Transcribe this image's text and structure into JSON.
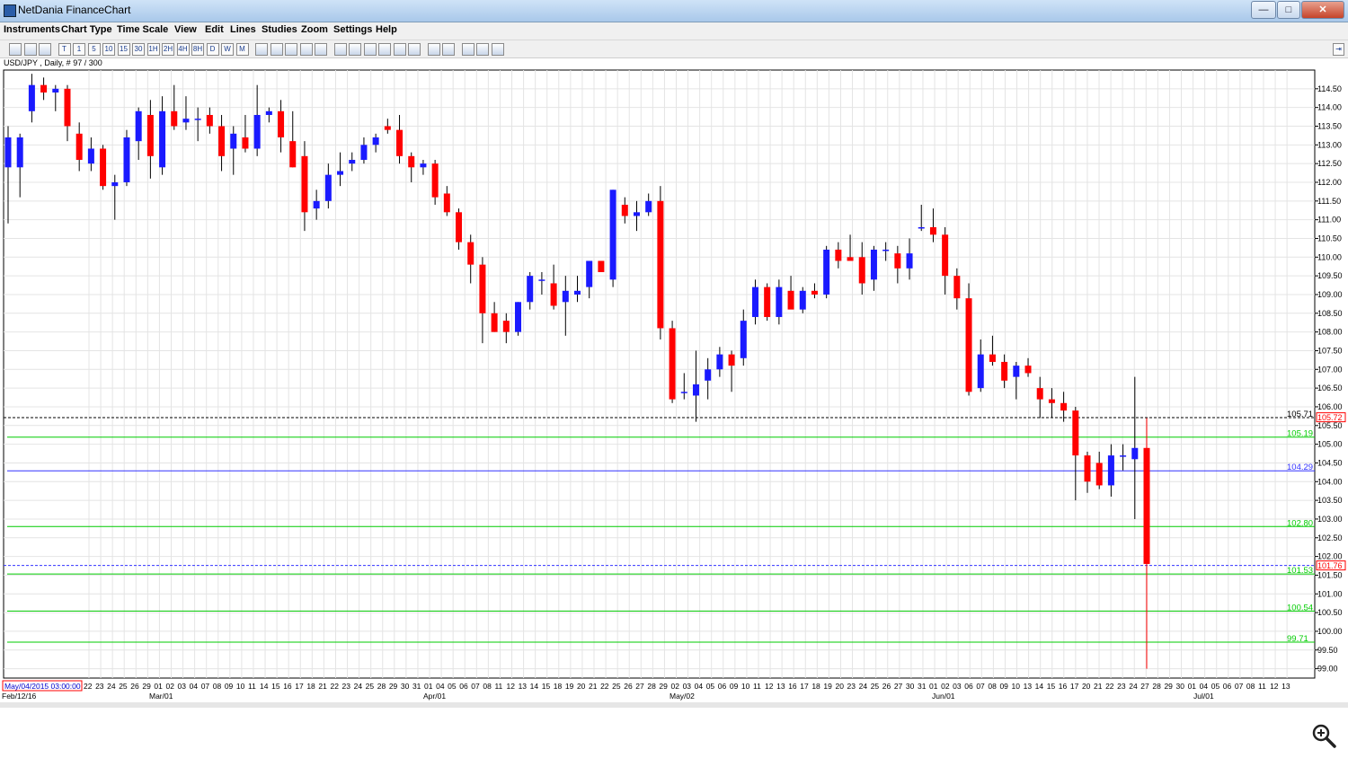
{
  "window": {
    "title": "NetDania FinanceChart",
    "min_label": "—",
    "max_label": "□",
    "close_label": "✕"
  },
  "menu": [
    "Instruments",
    "Chart Type",
    "Time Scale",
    "View",
    "Edit",
    "Lines",
    "Studies",
    "Zoom",
    "Settings",
    "Help"
  ],
  "toolbar": {
    "buttons": [
      "bar-chart-icon",
      "candle-icon",
      "line-icon",
      "T",
      "1",
      "5",
      "10",
      "15",
      "30",
      "1H",
      "2H",
      "4H",
      "8H",
      "D",
      "W",
      "M",
      "crosshair-icon",
      "grid-icon",
      "cursor-icon",
      "indicator-icon",
      "volume-icon",
      "trend-line-icon",
      "channel-icon",
      "fib-icon",
      "arrow-icon",
      "delete-icon",
      "delete-all-icon",
      "print-icon",
      "print-preview-icon",
      "zoom-in-icon",
      "zoom-out-icon",
      "zoom-reset-icon"
    ],
    "right_button": "⇥"
  },
  "chart_caption": "USD/JPY , Daily, # 97 / 300",
  "colors": {
    "up": "#1a1aff",
    "down": "#ff0000",
    "grid": "#e4e4e4",
    "support": "#00cc00",
    "pivot": "#3333ff",
    "price_line": "#000000"
  },
  "chart_data": {
    "type": "candlestick",
    "ylim": [
      98.75,
      115.0
    ],
    "y_ticks": [
      "114.50",
      "114.00",
      "113.50",
      "113.00",
      "112.50",
      "112.00",
      "111.50",
      "111.00",
      "110.50",
      "110.00",
      "109.50",
      "109.00",
      "108.50",
      "108.00",
      "107.50",
      "107.00",
      "106.50",
      "106.00",
      "105.50",
      "105.00",
      "104.50",
      "104.00",
      "103.50",
      "103.00",
      "102.50",
      "102.00",
      "101.50",
      "101.00",
      "100.50",
      "100.00",
      "99.50",
      "99.00"
    ],
    "x_labels": [
      "May/04/2015 03:00:00",
      "22",
      "23",
      "24",
      "25",
      "26",
      "29",
      "01",
      "02",
      "03",
      "04",
      "07",
      "08",
      "09",
      "10",
      "11",
      "14",
      "15",
      "16",
      "17",
      "18",
      "21",
      "22",
      "23",
      "24",
      "25",
      "28",
      "29",
      "30",
      "31",
      "01",
      "04",
      "05",
      "06",
      "07",
      "08",
      "11",
      "12",
      "13",
      "14",
      "15",
      "18",
      "19",
      "20",
      "21",
      "22",
      "25",
      "26",
      "27",
      "28",
      "29",
      "02",
      "03",
      "04",
      "05",
      "06",
      "09",
      "10",
      "11",
      "12",
      "13",
      "16",
      "17",
      "18",
      "19",
      "20",
      "23",
      "24",
      "25",
      "26",
      "27",
      "30",
      "31",
      "01",
      "02",
      "03",
      "06",
      "07",
      "08",
      "09",
      "10",
      "13",
      "14",
      "15",
      "16",
      "17",
      "20",
      "21",
      "22",
      "23",
      "24",
      "27",
      "28",
      "29",
      "30",
      "01",
      "04",
      "05",
      "06",
      "07",
      "08",
      "11",
      "12",
      "13"
    ],
    "month_labels": [
      "Feb/12/16",
      "Mar/01",
      "Apr/01",
      "May/02",
      "Jun/01",
      "Jul/01"
    ],
    "candles": [
      {
        "o": 112.4,
        "h": 113.5,
        "l": 110.9,
        "c": 113.2
      },
      {
        "o": 112.4,
        "h": 113.3,
        "l": 111.6,
        "c": 113.2
      },
      {
        "o": 113.9,
        "h": 114.9,
        "l": 113.6,
        "c": 114.6
      },
      {
        "o": 114.6,
        "h": 114.8,
        "l": 114.2,
        "c": 114.4
      },
      {
        "o": 114.4,
        "h": 114.6,
        "l": 113.9,
        "c": 114.5
      },
      {
        "o": 114.5,
        "h": 114.6,
        "l": 113.1,
        "c": 113.5
      },
      {
        "o": 113.3,
        "h": 113.6,
        "l": 112.3,
        "c": 112.6
      },
      {
        "o": 112.5,
        "h": 113.2,
        "l": 112.3,
        "c": 112.9
      },
      {
        "o": 112.9,
        "h": 113.0,
        "l": 111.8,
        "c": 111.9
      },
      {
        "o": 111.9,
        "h": 112.2,
        "l": 111.0,
        "c": 112.0
      },
      {
        "o": 112.0,
        "h": 113.4,
        "l": 111.9,
        "c": 113.2
      },
      {
        "o": 113.1,
        "h": 114.0,
        "l": 112.6,
        "c": 113.9
      },
      {
        "o": 113.8,
        "h": 114.2,
        "l": 112.1,
        "c": 112.7
      },
      {
        "o": 112.4,
        "h": 114.3,
        "l": 112.2,
        "c": 113.9
      },
      {
        "o": 113.9,
        "h": 114.6,
        "l": 113.4,
        "c": 113.5
      },
      {
        "o": 113.6,
        "h": 114.3,
        "l": 113.4,
        "c": 113.7
      },
      {
        "o": 113.7,
        "h": 114.0,
        "l": 113.1,
        "c": 113.7
      },
      {
        "o": 113.8,
        "h": 114.0,
        "l": 113.3,
        "c": 113.5
      },
      {
        "o": 113.5,
        "h": 113.8,
        "l": 112.3,
        "c": 112.7
      },
      {
        "o": 112.9,
        "h": 113.5,
        "l": 112.2,
        "c": 113.3
      },
      {
        "o": 113.2,
        "h": 113.8,
        "l": 112.8,
        "c": 112.9
      },
      {
        "o": 112.9,
        "h": 114.6,
        "l": 112.7,
        "c": 113.8
      },
      {
        "o": 113.8,
        "h": 114.0,
        "l": 113.6,
        "c": 113.9
      },
      {
        "o": 113.9,
        "h": 114.2,
        "l": 112.8,
        "c": 113.2
      },
      {
        "o": 113.1,
        "h": 113.9,
        "l": 112.4,
        "c": 112.4
      },
      {
        "o": 112.7,
        "h": 113.1,
        "l": 110.7,
        "c": 111.2
      },
      {
        "o": 111.3,
        "h": 111.8,
        "l": 111.0,
        "c": 111.5
      },
      {
        "o": 111.5,
        "h": 112.5,
        "l": 111.3,
        "c": 112.2
      },
      {
        "o": 112.2,
        "h": 112.8,
        "l": 111.9,
        "c": 112.3
      },
      {
        "o": 112.5,
        "h": 112.8,
        "l": 112.3,
        "c": 112.6
      },
      {
        "o": 112.6,
        "h": 113.2,
        "l": 112.5,
        "c": 113.0
      },
      {
        "o": 113.0,
        "h": 113.3,
        "l": 112.8,
        "c": 113.2
      },
      {
        "o": 113.5,
        "h": 113.7,
        "l": 113.3,
        "c": 113.4
      },
      {
        "o": 113.4,
        "h": 113.8,
        "l": 112.5,
        "c": 112.7
      },
      {
        "o": 112.7,
        "h": 112.8,
        "l": 112.0,
        "c": 112.4
      },
      {
        "o": 112.4,
        "h": 112.6,
        "l": 112.2,
        "c": 112.5
      },
      {
        "o": 112.5,
        "h": 112.6,
        "l": 111.4,
        "c": 111.6
      },
      {
        "o": 111.7,
        "h": 111.9,
        "l": 111.1,
        "c": 111.2
      },
      {
        "o": 111.2,
        "h": 111.3,
        "l": 110.2,
        "c": 110.4
      },
      {
        "o": 110.4,
        "h": 110.6,
        "l": 109.3,
        "c": 109.8
      },
      {
        "o": 109.8,
        "h": 110.0,
        "l": 107.7,
        "c": 108.5
      },
      {
        "o": 108.5,
        "h": 108.8,
        "l": 108.0,
        "c": 108.0
      },
      {
        "o": 108.3,
        "h": 108.5,
        "l": 107.7,
        "c": 108.0
      },
      {
        "o": 108.0,
        "h": 108.8,
        "l": 107.9,
        "c": 108.8
      },
      {
        "o": 108.8,
        "h": 109.6,
        "l": 108.6,
        "c": 109.5
      },
      {
        "o": 109.4,
        "h": 109.6,
        "l": 109.0,
        "c": 109.4
      },
      {
        "o": 109.3,
        "h": 109.8,
        "l": 108.6,
        "c": 108.7
      },
      {
        "o": 108.8,
        "h": 109.5,
        "l": 107.9,
        "c": 109.1
      },
      {
        "o": 109.0,
        "h": 109.5,
        "l": 108.8,
        "c": 109.1
      },
      {
        "o": 109.2,
        "h": 109.8,
        "l": 108.9,
        "c": 109.9
      },
      {
        "o": 109.9,
        "h": 109.9,
        "l": 109.6,
        "c": 109.6
      },
      {
        "o": 109.4,
        "h": 111.8,
        "l": 109.2,
        "c": 111.8
      },
      {
        "o": 111.4,
        "h": 111.6,
        "l": 110.9,
        "c": 111.1
      },
      {
        "o": 111.1,
        "h": 111.5,
        "l": 110.7,
        "c": 111.2
      },
      {
        "o": 111.2,
        "h": 111.7,
        "l": 111.1,
        "c": 111.5
      },
      {
        "o": 111.5,
        "h": 111.9,
        "l": 107.8,
        "c": 108.1
      },
      {
        "o": 108.1,
        "h": 108.3,
        "l": 106.1,
        "c": 106.2
      },
      {
        "o": 106.4,
        "h": 106.9,
        "l": 106.2,
        "c": 106.4
      },
      {
        "o": 106.3,
        "h": 107.5,
        "l": 105.6,
        "c": 106.6
      },
      {
        "o": 106.7,
        "h": 107.3,
        "l": 106.2,
        "c": 107.0
      },
      {
        "o": 107.0,
        "h": 107.6,
        "l": 106.8,
        "c": 107.4
      },
      {
        "o": 107.4,
        "h": 107.5,
        "l": 106.4,
        "c": 107.1
      },
      {
        "o": 107.3,
        "h": 108.6,
        "l": 107.1,
        "c": 108.3
      },
      {
        "o": 108.4,
        "h": 109.4,
        "l": 108.2,
        "c": 109.2
      },
      {
        "o": 109.2,
        "h": 109.3,
        "l": 108.3,
        "c": 108.4
      },
      {
        "o": 108.4,
        "h": 109.4,
        "l": 108.2,
        "c": 109.2
      },
      {
        "o": 109.1,
        "h": 109.5,
        "l": 108.7,
        "c": 108.6
      },
      {
        "o": 108.6,
        "h": 109.2,
        "l": 108.5,
        "c": 109.1
      },
      {
        "o": 109.1,
        "h": 109.3,
        "l": 108.9,
        "c": 109.0
      },
      {
        "o": 109.0,
        "h": 110.3,
        "l": 108.9,
        "c": 110.2
      },
      {
        "o": 110.2,
        "h": 110.4,
        "l": 109.7,
        "c": 109.9
      },
      {
        "o": 110.0,
        "h": 110.6,
        "l": 109.9,
        "c": 109.9
      },
      {
        "o": 110.0,
        "h": 110.4,
        "l": 109.0,
        "c": 109.3
      },
      {
        "o": 109.4,
        "h": 110.3,
        "l": 109.1,
        "c": 110.2
      },
      {
        "o": 110.2,
        "h": 110.4,
        "l": 109.9,
        "c": 110.2
      },
      {
        "o": 110.1,
        "h": 110.3,
        "l": 109.3,
        "c": 109.7
      },
      {
        "o": 109.7,
        "h": 110.5,
        "l": 109.4,
        "c": 110.1
      },
      {
        "o": 110.8,
        "h": 111.4,
        "l": 110.7,
        "c": 110.8
      },
      {
        "o": 110.8,
        "h": 111.3,
        "l": 110.4,
        "c": 110.6
      },
      {
        "o": 110.6,
        "h": 110.8,
        "l": 109.0,
        "c": 109.5
      },
      {
        "o": 109.5,
        "h": 109.7,
        "l": 108.6,
        "c": 108.9
      },
      {
        "o": 108.9,
        "h": 109.3,
        "l": 106.3,
        "c": 106.4
      },
      {
        "o": 106.5,
        "h": 107.8,
        "l": 106.4,
        "c": 107.4
      },
      {
        "o": 107.4,
        "h": 107.9,
        "l": 107.1,
        "c": 107.2
      },
      {
        "o": 107.2,
        "h": 107.4,
        "l": 106.5,
        "c": 106.7
      },
      {
        "o": 106.8,
        "h": 107.2,
        "l": 106.2,
        "c": 107.1
      },
      {
        "o": 107.1,
        "h": 107.3,
        "l": 106.8,
        "c": 106.9
      },
      {
        "o": 106.5,
        "h": 106.8,
        "l": 105.7,
        "c": 106.2
      },
      {
        "o": 106.2,
        "h": 106.5,
        "l": 105.7,
        "c": 106.1
      },
      {
        "o": 106.1,
        "h": 106.4,
        "l": 105.6,
        "c": 105.9
      },
      {
        "o": 105.9,
        "h": 106.0,
        "l": 103.5,
        "c": 104.7
      },
      {
        "o": 104.7,
        "h": 104.8,
        "l": 103.7,
        "c": 104.0
      },
      {
        "o": 104.5,
        "h": 104.8,
        "l": 103.8,
        "c": 103.9
      },
      {
        "o": 103.9,
        "h": 105.0,
        "l": 103.6,
        "c": 104.7
      },
      {
        "o": 104.7,
        "h": 105.0,
        "l": 104.3,
        "c": 104.7
      },
      {
        "o": 104.6,
        "h": 106.8,
        "l": 103.0,
        "c": 104.9
      },
      {
        "o": 104.9,
        "h": 105.7,
        "l": 99.0,
        "c": 101.8
      }
    ],
    "hlines": [
      {
        "price": 105.71,
        "label": "105.71",
        "color": "#000000",
        "style": "dashed"
      },
      {
        "price": 105.19,
        "label": "105.19",
        "color": "#00cc00",
        "style": "solid"
      },
      {
        "price": 104.29,
        "label": "104.29",
        "color": "#3333ff",
        "style": "solid"
      },
      {
        "price": 102.8,
        "label": "102.80",
        "color": "#00cc00",
        "style": "solid"
      },
      {
        "price": 101.76,
        "label": "",
        "color": "#3333ff",
        "style": "dashed"
      },
      {
        "price": 101.53,
        "label": "101.53",
        "color": "#00cc00",
        "style": "solid"
      },
      {
        "price": 100.54,
        "label": "100.54",
        "color": "#00cc00",
        "style": "solid"
      },
      {
        "price": 99.71,
        "label": "99.71",
        "color": "#00cc00",
        "style": "solid"
      }
    ],
    "axis_markers": [
      {
        "price": 105.72,
        "label": "105.72",
        "color": "#ff0000"
      },
      {
        "price": 101.76,
        "label": "101.76",
        "color": "#ff0000"
      }
    ]
  }
}
